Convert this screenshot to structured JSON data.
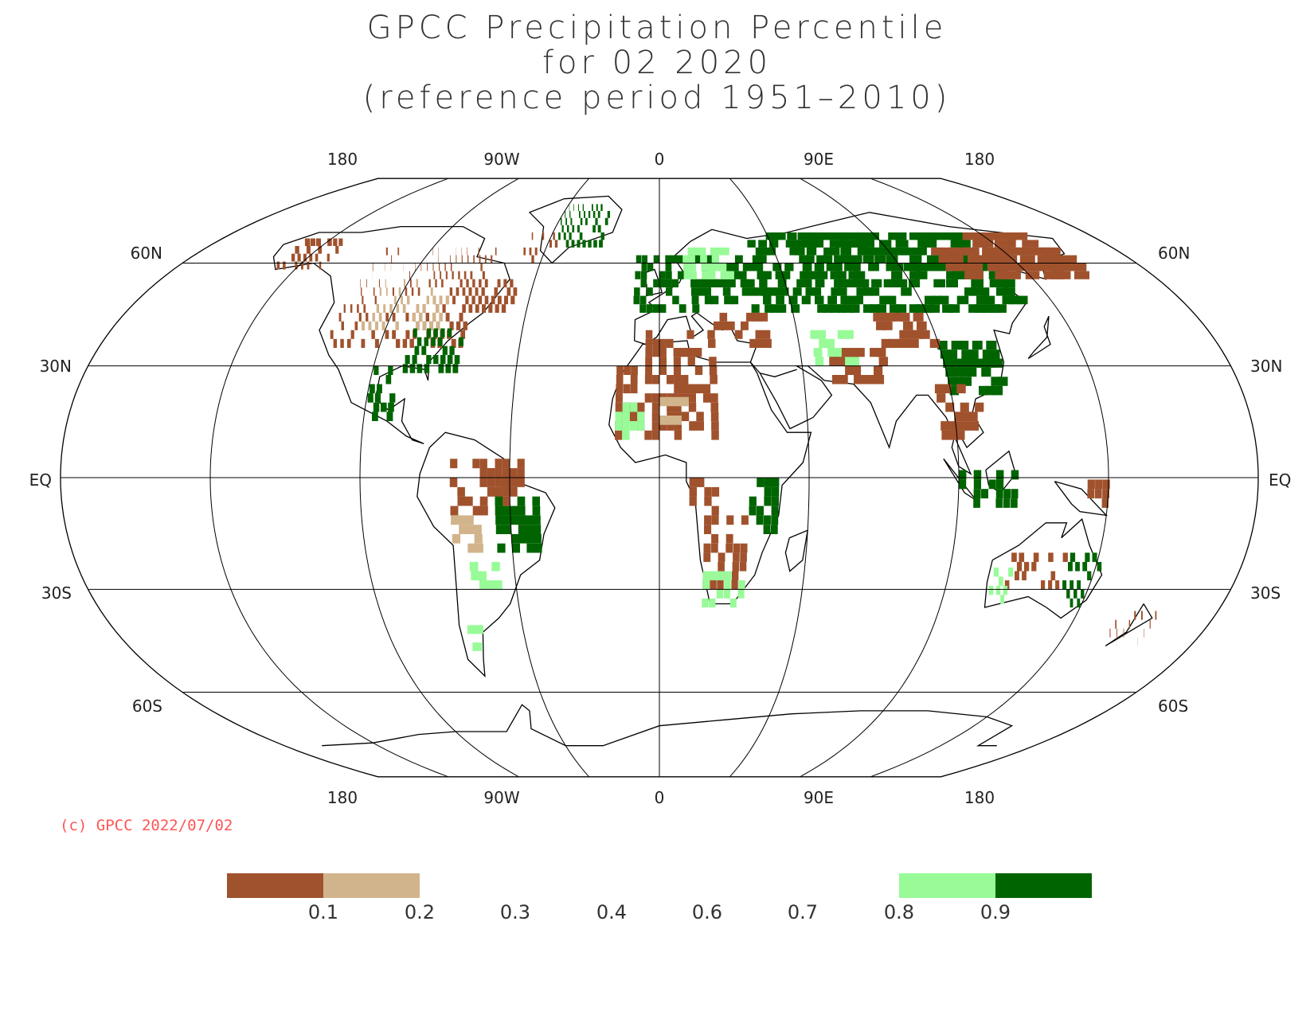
{
  "title": {
    "line1": "GPCC Precipitation Percentile",
    "line2": "for 02 2020",
    "line3": "(reference period 1951–2010)"
  },
  "lon_labels": [
    "180",
    "90W",
    "0",
    "90E",
    "180"
  ],
  "lat_labels": [
    "60N",
    "30N",
    "EQ",
    "30S",
    "60S"
  ],
  "copyright": "(c) GPCC 2022/07/02",
  "legend": {
    "colors": {
      "very_dry": "#a0522d",
      "dry": "#d2b48c",
      "wet": "#98fb98",
      "very_wet": "#006400"
    },
    "ticks": [
      "0.1",
      "0.2",
      "0.3",
      "0.4",
      "0.6",
      "0.7",
      "0.8",
      "0.9"
    ]
  }
}
